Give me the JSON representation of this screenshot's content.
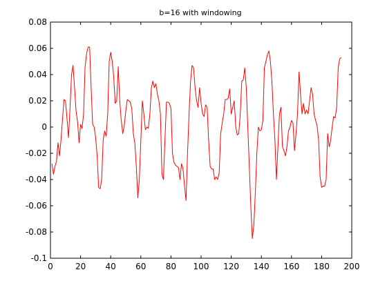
{
  "chart_data": {
    "type": "line",
    "title": "b=16 with windowing",
    "xlabel": "",
    "ylabel": "",
    "xlim": [
      0,
      200
    ],
    "ylim": [
      -0.1,
      0.08
    ],
    "grid": false,
    "x_ticks": [
      0,
      20,
      40,
      60,
      80,
      100,
      120,
      140,
      160,
      180,
      200
    ],
    "x_tick_labels": [
      "0",
      "20",
      "40",
      "60",
      "80",
      "100",
      "120",
      "140",
      "160",
      "180",
      "200"
    ],
    "y_ticks": [
      -0.1,
      -0.08,
      -0.06,
      -0.04,
      -0.02,
      0,
      0.02,
      0.04,
      0.06,
      0.08
    ],
    "y_tick_labels": [
      "-0.1",
      "-0.08",
      "-0.06",
      "-0.04",
      "-0.02",
      "0",
      "0.02",
      "0.04",
      "0.06",
      "0.08"
    ],
    "series": [
      {
        "color": "#ff0000",
        "points": [
          [
            1,
            -0.028
          ],
          [
            2,
            -0.036
          ],
          [
            3,
            -0.03
          ],
          [
            4,
            -0.026
          ],
          [
            5,
            -0.012
          ],
          [
            6,
            -0.022
          ],
          [
            7,
            -0.01
          ],
          [
            8,
            0.006
          ],
          [
            9,
            0.021
          ],
          [
            10,
            0.02
          ],
          [
            11,
            0.006
          ],
          [
            12,
            -0.008
          ],
          [
            13,
            0.015
          ],
          [
            14,
            0.04
          ],
          [
            15,
            0.047
          ],
          [
            16,
            0.03
          ],
          [
            17,
            0.012
          ],
          [
            18,
            0.004
          ],
          [
            19,
            -0.012
          ],
          [
            20,
            0.002
          ],
          [
            21,
            -0.001
          ],
          [
            22,
            0.01
          ],
          [
            23,
            0.046
          ],
          [
            24,
            0.056
          ],
          [
            25,
            0.061
          ],
          [
            26,
            0.061
          ],
          [
            27,
            0.03
          ],
          [
            28,
            0.002
          ],
          [
            29,
            0.0
          ],
          [
            30,
            -0.008
          ],
          [
            31,
            -0.022
          ],
          [
            32,
            -0.046
          ],
          [
            33,
            -0.047
          ],
          [
            34,
            -0.04
          ],
          [
            35,
            -0.01
          ],
          [
            36,
            -0.003
          ],
          [
            37,
            -0.007
          ],
          [
            38,
            0.01
          ],
          [
            39,
            0.05
          ],
          [
            40,
            0.057
          ],
          [
            41,
            0.05
          ],
          [
            42,
            0.038
          ],
          [
            43,
            0.018
          ],
          [
            44,
            0.02
          ],
          [
            45,
            0.046
          ],
          [
            46,
            0.02
          ],
          [
            47,
            0.005
          ],
          [
            48,
            -0.005
          ],
          [
            49,
            0.001
          ],
          [
            50,
            0.012
          ],
          [
            51,
            0.021
          ],
          [
            52,
            0.02
          ],
          [
            53,
            0.019
          ],
          [
            54,
            0.014
          ],
          [
            55,
            -0.005
          ],
          [
            56,
            -0.012
          ],
          [
            57,
            -0.03
          ],
          [
            58,
            -0.054
          ],
          [
            59,
            -0.04
          ],
          [
            60,
            -0.01
          ],
          [
            61,
            0.02
          ],
          [
            62,
            0.01
          ],
          [
            63,
            -0.002
          ],
          [
            64,
            0.0
          ],
          [
            65,
            -0.001
          ],
          [
            66,
            0.01
          ],
          [
            67,
            0.03
          ],
          [
            68,
            0.035
          ],
          [
            69,
            0.03
          ],
          [
            70,
            0.033
          ],
          [
            71,
            0.025
          ],
          [
            72,
            0.02
          ],
          [
            73,
            0.01
          ],
          [
            74,
            -0.036
          ],
          [
            75,
            -0.04
          ],
          [
            76,
            -0.01
          ],
          [
            77,
            0.019
          ],
          [
            78,
            0.019
          ],
          [
            79,
            0.018
          ],
          [
            80,
            0.014
          ],
          [
            81,
            -0.02
          ],
          [
            82,
            -0.027
          ],
          [
            83,
            -0.029
          ],
          [
            84,
            -0.03
          ],
          [
            85,
            -0.031
          ],
          [
            86,
            -0.04
          ],
          [
            87,
            -0.028
          ],
          [
            88,
            -0.032
          ],
          [
            89,
            -0.045
          ],
          [
            90,
            -0.056
          ],
          [
            91,
            -0.02
          ],
          [
            92,
            0.01
          ],
          [
            93,
            0.035
          ],
          [
            94,
            0.047
          ],
          [
            95,
            0.045
          ],
          [
            96,
            0.03
          ],
          [
            97,
            0.02
          ],
          [
            98,
            0.015
          ],
          [
            99,
            0.03
          ],
          [
            100,
            0.018
          ],
          [
            101,
            0.01
          ],
          [
            102,
            0.008
          ],
          [
            103,
            0.017
          ],
          [
            104,
            0.015
          ],
          [
            105,
            -0.01
          ],
          [
            106,
            -0.03
          ],
          [
            107,
            -0.032
          ],
          [
            108,
            -0.032
          ],
          [
            109,
            -0.04
          ],
          [
            110,
            -0.038
          ],
          [
            111,
            -0.04
          ],
          [
            112,
            -0.035
          ],
          [
            113,
            -0.005
          ],
          [
            114,
            0.003
          ],
          [
            115,
            0.01
          ],
          [
            116,
            0.021
          ],
          [
            117,
            0.021
          ],
          [
            118,
            0.022
          ],
          [
            119,
            0.029
          ],
          [
            120,
            0.01
          ],
          [
            121,
            0.015
          ],
          [
            122,
            0.02
          ],
          [
            123,
            0.0
          ],
          [
            124,
            -0.006
          ],
          [
            125,
            -0.005
          ],
          [
            126,
            0.01
          ],
          [
            127,
            0.035
          ],
          [
            128,
            0.036
          ],
          [
            129,
            0.045
          ],
          [
            130,
            0.03
          ],
          [
            131,
            0.0
          ],
          [
            132,
            -0.03
          ],
          [
            133,
            -0.06
          ],
          [
            134,
            -0.085
          ],
          [
            135,
            -0.075
          ],
          [
            136,
            -0.05
          ],
          [
            137,
            -0.02
          ],
          [
            138,
            0.0
          ],
          [
            139,
            -0.003
          ],
          [
            140,
            -0.002
          ],
          [
            141,
            0.005
          ],
          [
            142,
            0.045
          ],
          [
            143,
            0.05
          ],
          [
            144,
            0.055
          ],
          [
            145,
            0.058
          ],
          [
            146,
            0.05
          ],
          [
            147,
            0.035
          ],
          [
            148,
            0.01
          ],
          [
            149,
            -0.01
          ],
          [
            150,
            -0.04
          ],
          [
            151,
            -0.015
          ],
          [
            152,
            0.01
          ],
          [
            153,
            0.015
          ],
          [
            154,
            -0.015
          ],
          [
            155,
            -0.018
          ],
          [
            156,
            -0.022
          ],
          [
            157,
            -0.015
          ],
          [
            158,
            -0.003
          ],
          [
            159,
            0.0
          ],
          [
            160,
            0.005
          ],
          [
            161,
            0.003
          ],
          [
            162,
            -0.018
          ],
          [
            163,
            -0.005
          ],
          [
            164,
            0.01
          ],
          [
            165,
            0.042
          ],
          [
            166,
            0.025
          ],
          [
            167,
            0.01
          ],
          [
            168,
            0.018
          ],
          [
            169,
            0.01
          ],
          [
            170,
            0.013
          ],
          [
            171,
            0.01
          ],
          [
            172,
            0.02
          ],
          [
            173,
            0.03
          ],
          [
            174,
            0.025
          ],
          [
            175,
            0.01
          ],
          [
            176,
            0.005
          ],
          [
            177,
            0.001
          ],
          [
            178,
            -0.01
          ],
          [
            179,
            -0.038
          ],
          [
            180,
            -0.046
          ],
          [
            181,
            -0.045
          ],
          [
            182,
            -0.045
          ],
          [
            183,
            -0.04
          ],
          [
            184,
            -0.005
          ],
          [
            185,
            -0.015
          ],
          [
            186,
            -0.01
          ],
          [
            187,
            0.0
          ],
          [
            188,
            0.008
          ],
          [
            189,
            0.007
          ],
          [
            190,
            0.015
          ],
          [
            191,
            0.045
          ],
          [
            192,
            0.052
          ],
          [
            193,
            0.053
          ]
        ]
      }
    ]
  }
}
